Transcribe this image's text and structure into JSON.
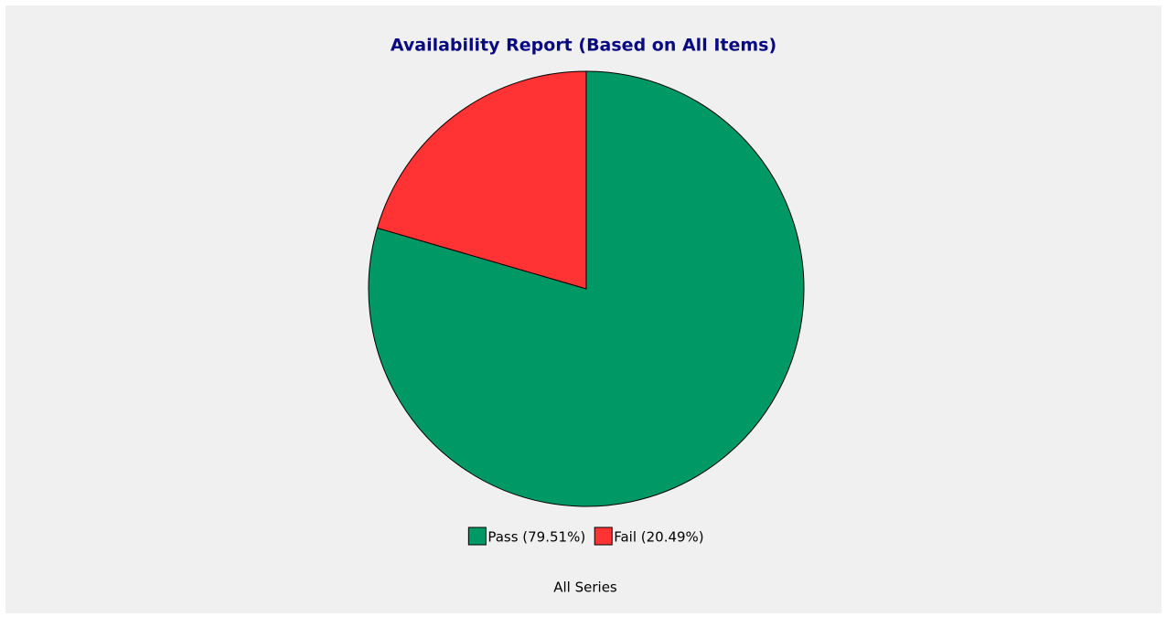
{
  "chart_data": {
    "type": "pie",
    "title": "Availability Report (Based on All Items)",
    "categories": [
      "Pass (79.51%)",
      "Fail (20.49%)"
    ],
    "values": [
      79.51,
      20.49
    ],
    "colors": [
      "#009966",
      "#ff3333"
    ],
    "xlabel": "All Series",
    "legend": "bottom"
  }
}
